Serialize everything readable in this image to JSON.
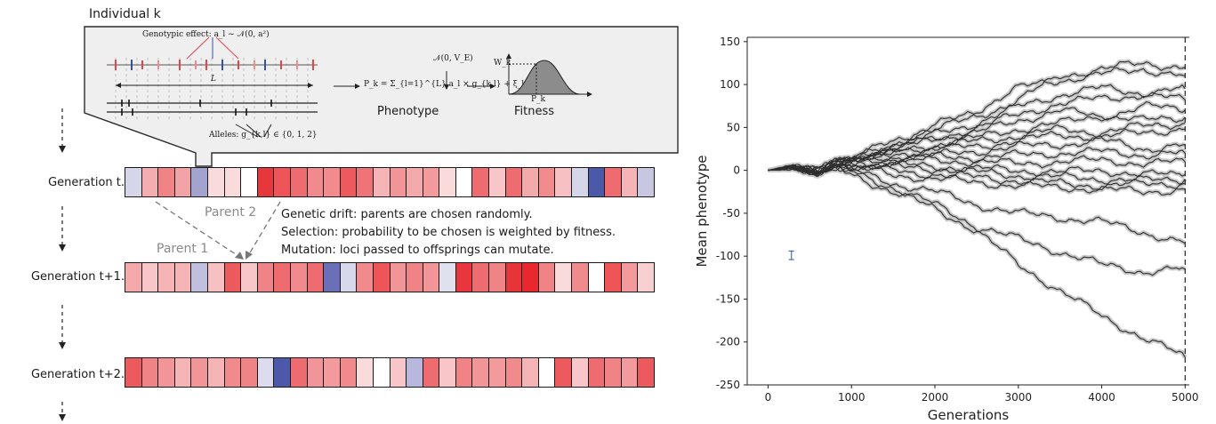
{
  "diagram": {
    "individual_label": "Individual k",
    "inset": {
      "genotypic_effect": "Genotypic effect: a_l ~ 𝒩(0, a²)",
      "length_label": "L",
      "alleles": "Alleles: g_{k,l} ∈ {0, 1, 2}",
      "equation": "P_k = Σ_{l=1}^{L} a_l × g_{k,l} + ξ_k",
      "noise": "𝒩(0, V_E)",
      "phenotype": "Phenotype",
      "fitness": "Fitness",
      "wk": "W_k",
      "pk": "P_k"
    },
    "generations": [
      {
        "label": "Generation t.",
        "cells": [
          "#d6d6ea",
          "#f4adb0",
          "#f08386",
          "#f2a3a6",
          "#a3a3cf",
          "#fadbdc",
          "#fadbdc",
          "#ffffff",
          "#e8373c",
          "#ed5559",
          "#ee6c70",
          "#f18a8d",
          "#f18b8e",
          "#ec5a5e",
          "#ee7478",
          "#f5b4b6",
          "#f29598",
          "#f4a9ab",
          "#f39a9d",
          "#fadbdc",
          "#ffffff",
          "#ee6c70",
          "#f8c6c8",
          "#ee6c70",
          "#f4a9ab",
          "#f18b8e",
          "#f7c1c3",
          "#d6d6ea",
          "#4c58a8",
          "#ee6c70",
          "#f5b4b6",
          "#c7c7e2"
        ]
      },
      {
        "label": "Generation t+1.",
        "cells": [
          "#f4a9ab",
          "#f8c6c8",
          "#f5b4b6",
          "#f5b4b6",
          "#c0c0de",
          "#f7c1c3",
          "#ec5a5e",
          "#f8c6c8",
          "#f08386",
          "#ee6c70",
          "#f18a8d",
          "#ee6c70",
          "#6b6fb8",
          "#d8d8ec",
          "#f18a8d",
          "#ed5559",
          "#f29598",
          "#f08386",
          "#f29598",
          "#e0e0ef",
          "#e8373c",
          "#ee6c70",
          "#f08386",
          "#e63438",
          "#e8282d",
          "#f08386",
          "#fadbdc",
          "#f18a8d",
          "#ffffff",
          "#ed5559",
          "#f39a9d",
          "#f8d0d2"
        ]
      },
      {
        "label": "Generation t+2.",
        "cells": [
          "#ec5a5e",
          "#f08386",
          "#f29598",
          "#f5b4b6",
          "#f29598",
          "#f5b4b6",
          "#f18a8d",
          "#f08386",
          "#dcdcee",
          "#4c58a8",
          "#ee6c70",
          "#f29598",
          "#f39a9d",
          "#f18a8d",
          "#fadbdc",
          "#ffffff",
          "#f8c6c8",
          "#b8b8dc",
          "#ee6c70",
          "#f8c6c8",
          "#f08386",
          "#f29598",
          "#f39a9d",
          "#f18a8d",
          "#f5b4b6",
          "#ffffff",
          "#ec5a5e",
          "#f8c6c8",
          "#ee6c70",
          "#f08386",
          "#f39a9d",
          "#ec5a5e"
        ]
      }
    ],
    "parent1": "Parent 1",
    "parent2": "Parent 2",
    "notes": [
      "Genetic drift: parents are chosen randomly.",
      "Selection: probability to be chosen is weighted by fitness.",
      "Mutation: loci passed to offsprings can mutate."
    ]
  },
  "chart_data": {
    "type": "line",
    "xlabel": "Generations",
    "ylabel": "Mean phenotype",
    "xlim": [
      -250,
      5050
    ],
    "ylim": [
      -250,
      155
    ],
    "xticks": [
      0,
      1000,
      2000,
      3000,
      4000,
      5000
    ],
    "yticks": [
      150,
      100,
      50,
      0,
      -50,
      -100,
      -150,
      -200,
      -250
    ],
    "line_color": "#2e2e2e",
    "band_color": "#c8c8c8",
    "vline_x": 5000,
    "errorbar": {
      "x": 280,
      "y": -99,
      "half_height": 5,
      "color": "#4a6fa5"
    },
    "series": [
      {
        "values": [
          [
            0,
            0
          ],
          [
            300,
            5
          ],
          [
            600,
            -2
          ],
          [
            800,
            10
          ],
          [
            1000,
            12
          ],
          [
            1500,
            35
          ],
          [
            2000,
            48
          ],
          [
            2500,
            62
          ],
          [
            3000,
            82
          ],
          [
            3500,
            110
          ],
          [
            4000,
            118
          ],
          [
            4500,
            125
          ],
          [
            5000,
            120
          ]
        ]
      },
      {
        "values": [
          [
            0,
            0
          ],
          [
            300,
            4
          ],
          [
            600,
            -2
          ],
          [
            800,
            10
          ],
          [
            1000,
            13
          ],
          [
            1500,
            30
          ],
          [
            2000,
            52
          ],
          [
            2500,
            70
          ],
          [
            3000,
            96
          ],
          [
            3500,
            105
          ],
          [
            4000,
            112
          ],
          [
            4500,
            118
          ],
          [
            5000,
            110
          ]
        ]
      },
      {
        "values": [
          [
            0,
            0
          ],
          [
            300,
            3
          ],
          [
            600,
            -1
          ],
          [
            800,
            9
          ],
          [
            1000,
            12
          ],
          [
            1500,
            28
          ],
          [
            2000,
            42
          ],
          [
            2500,
            55
          ],
          [
            3000,
            74
          ],
          [
            3500,
            88
          ],
          [
            4000,
            96
          ],
          [
            4500,
            90
          ],
          [
            5000,
            95
          ]
        ]
      },
      {
        "values": [
          [
            0,
            0
          ],
          [
            300,
            5
          ],
          [
            600,
            -3
          ],
          [
            800,
            8
          ],
          [
            1000,
            11
          ],
          [
            1500,
            24
          ],
          [
            2000,
            36
          ],
          [
            2500,
            50
          ],
          [
            3000,
            65
          ],
          [
            3500,
            78
          ],
          [
            4000,
            84
          ],
          [
            4500,
            88
          ],
          [
            5000,
            82
          ]
        ]
      },
      {
        "values": [
          [
            0,
            0
          ],
          [
            300,
            4
          ],
          [
            600,
            -2
          ],
          [
            800,
            10
          ],
          [
            1000,
            14
          ],
          [
            1500,
            26
          ],
          [
            2000,
            38
          ],
          [
            2500,
            44
          ],
          [
            3000,
            58
          ],
          [
            3500,
            70
          ],
          [
            4000,
            62
          ],
          [
            4500,
            75
          ],
          [
            5000,
            70
          ]
        ]
      },
      {
        "values": [
          [
            0,
            0
          ],
          [
            300,
            3
          ],
          [
            600,
            -1
          ],
          [
            800,
            9
          ],
          [
            1000,
            10
          ],
          [
            1500,
            20
          ],
          [
            2000,
            30
          ],
          [
            2500,
            38
          ],
          [
            3000,
            48
          ],
          [
            3500,
            55
          ],
          [
            4000,
            64
          ],
          [
            4500,
            58
          ],
          [
            5000,
            62
          ]
        ]
      },
      {
        "values": [
          [
            0,
            0
          ],
          [
            300,
            5
          ],
          [
            600,
            -2
          ],
          [
            800,
            8
          ],
          [
            1000,
            12
          ],
          [
            1500,
            22
          ],
          [
            2000,
            28
          ],
          [
            2500,
            34
          ],
          [
            3000,
            40
          ],
          [
            3500,
            48
          ],
          [
            4000,
            44
          ],
          [
            4500,
            52
          ],
          [
            5000,
            55
          ]
        ]
      },
      {
        "values": [
          [
            0,
            0
          ],
          [
            300,
            4
          ],
          [
            600,
            -3
          ],
          [
            800,
            9
          ],
          [
            1000,
            11
          ],
          [
            1500,
            18
          ],
          [
            2000,
            25
          ],
          [
            2500,
            28
          ],
          [
            3000,
            35
          ],
          [
            3500,
            42
          ],
          [
            4000,
            38
          ],
          [
            4500,
            45
          ],
          [
            5000,
            48
          ]
        ]
      },
      {
        "values": [
          [
            0,
            0
          ],
          [
            300,
            3
          ],
          [
            600,
            -2
          ],
          [
            800,
            7
          ],
          [
            1000,
            9
          ],
          [
            1500,
            15
          ],
          [
            2000,
            18
          ],
          [
            2500,
            22
          ],
          [
            3000,
            28
          ],
          [
            3500,
            30
          ],
          [
            4000,
            35
          ],
          [
            4500,
            25
          ],
          [
            5000,
            30
          ]
        ]
      },
      {
        "values": [
          [
            0,
            0
          ],
          [
            300,
            5
          ],
          [
            600,
            -1
          ],
          [
            800,
            9
          ],
          [
            1000,
            10
          ],
          [
            1500,
            14
          ],
          [
            2000,
            16
          ],
          [
            2500,
            15
          ],
          [
            3000,
            18
          ],
          [
            3500,
            20
          ],
          [
            4000,
            22
          ],
          [
            4500,
            18
          ],
          [
            5000,
            20
          ]
        ]
      },
      {
        "values": [
          [
            0,
            0
          ],
          [
            300,
            4
          ],
          [
            600,
            -2
          ],
          [
            800,
            8
          ],
          [
            1000,
            9
          ],
          [
            1500,
            10
          ],
          [
            2000,
            12
          ],
          [
            2500,
            10
          ],
          [
            3000,
            8
          ],
          [
            3500,
            10
          ],
          [
            4000,
            12
          ],
          [
            4500,
            8
          ],
          [
            5000,
            10
          ]
        ]
      },
      {
        "values": [
          [
            0,
            0
          ],
          [
            300,
            3
          ],
          [
            600,
            -3
          ],
          [
            800,
            7
          ],
          [
            1000,
            8
          ],
          [
            1500,
            6
          ],
          [
            2000,
            5
          ],
          [
            2500,
            2
          ],
          [
            3000,
            0
          ],
          [
            3500,
            -2
          ],
          [
            4000,
            0
          ],
          [
            4500,
            -5
          ],
          [
            5000,
            -5
          ]
        ]
      },
      {
        "values": [
          [
            0,
            0
          ],
          [
            300,
            4
          ],
          [
            600,
            -2
          ],
          [
            800,
            6
          ],
          [
            1000,
            6
          ],
          [
            1500,
            4
          ],
          [
            2000,
            2
          ],
          [
            2500,
            -2
          ],
          [
            3000,
            -6
          ],
          [
            3500,
            -8
          ],
          [
            4000,
            -10
          ],
          [
            4500,
            -12
          ],
          [
            5000,
            -10
          ]
        ]
      },
      {
        "values": [
          [
            0,
            0
          ],
          [
            300,
            5
          ],
          [
            600,
            -1
          ],
          [
            800,
            5
          ],
          [
            1000,
            4
          ],
          [
            1500,
            0
          ],
          [
            2000,
            -5
          ],
          [
            2500,
            -8
          ],
          [
            3000,
            -12
          ],
          [
            3500,
            -15
          ],
          [
            4000,
            -18
          ],
          [
            4500,
            -16
          ],
          [
            5000,
            -15
          ]
        ]
      },
      {
        "values": [
          [
            0,
            0
          ],
          [
            300,
            3
          ],
          [
            600,
            -2
          ],
          [
            800,
            5
          ],
          [
            1000,
            3
          ],
          [
            1500,
            -5
          ],
          [
            2000,
            -10
          ],
          [
            2500,
            -14
          ],
          [
            3000,
            -18
          ],
          [
            3500,
            -20
          ],
          [
            4000,
            -22
          ],
          [
            4500,
            -25
          ],
          [
            5000,
            -22
          ]
        ]
      },
      {
        "values": [
          [
            0,
            0
          ],
          [
            300,
            4
          ],
          [
            600,
            -3
          ],
          [
            800,
            4
          ],
          [
            1000,
            0
          ],
          [
            1500,
            -15
          ],
          [
            2000,
            -25
          ],
          [
            2500,
            -40
          ],
          [
            3000,
            -50
          ],
          [
            3500,
            -55
          ],
          [
            4000,
            -60
          ],
          [
            4500,
            -72
          ],
          [
            5000,
            -85
          ]
        ]
      },
      {
        "values": [
          [
            0,
            0
          ],
          [
            300,
            3
          ],
          [
            600,
            -2
          ],
          [
            800,
            3
          ],
          [
            1000,
            -2
          ],
          [
            1500,
            -20
          ],
          [
            2000,
            -40
          ],
          [
            2500,
            -65
          ],
          [
            3000,
            -80
          ],
          [
            3500,
            -95
          ],
          [
            4000,
            -110
          ],
          [
            4500,
            -118
          ],
          [
            5000,
            -115
          ]
        ]
      },
      {
        "values": [
          [
            0,
            0
          ],
          [
            300,
            4
          ],
          [
            600,
            -3
          ],
          [
            800,
            2
          ],
          [
            1000,
            -5
          ],
          [
            1500,
            -25
          ],
          [
            2000,
            -45
          ],
          [
            2500,
            -70
          ],
          [
            3000,
            -110
          ],
          [
            3500,
            -140
          ],
          [
            4000,
            -170
          ],
          [
            4500,
            -195
          ],
          [
            5000,
            -218
          ]
        ]
      }
    ]
  }
}
